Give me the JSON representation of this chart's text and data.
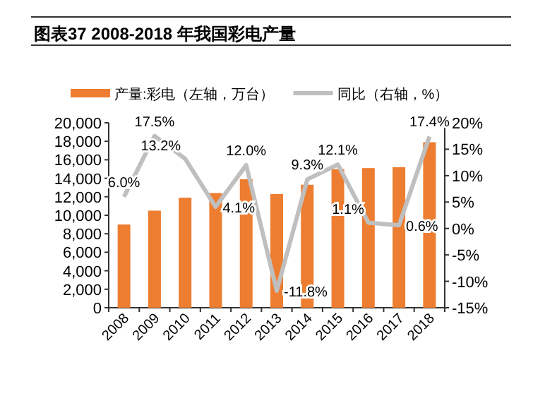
{
  "chart_data": {
    "type": "bar",
    "title": "图表37    2008-2018 年我国彩电产量",
    "categories": [
      "2008",
      "2009",
      "2010",
      "2011",
      "2012",
      "2013",
      "2014",
      "2015",
      "2016",
      "2017",
      "2018"
    ],
    "series": [
      {
        "name": "产量:彩电（左轴，万台）",
        "color": "#ed7d31",
        "values": [
          9000,
          10500,
          11900,
          12400,
          13900,
          12300,
          13300,
          15000,
          15100,
          15200,
          17900
        ]
      },
      {
        "name": "同比（右轴，%）",
        "type": "line",
        "axis": "y2",
        "color": "#bfbfbf",
        "values": [
          6.0,
          17.5,
          13.2,
          4.1,
          12.0,
          -11.8,
          9.3,
          12.1,
          1.1,
          0.6,
          17.4
        ],
        "value_labels": [
          "6.0%",
          "17.5%",
          "13.2%",
          "4.1%",
          "12.0%",
          "-11.8%",
          "9.3%",
          "12.1%",
          "1.1%",
          "0.6%",
          "17.4%"
        ]
      }
    ],
    "ylim": [
      0,
      20000
    ],
    "yticks": [
      {
        "value": 0,
        "label": "0"
      },
      {
        "value": 2000,
        "label": "2,000"
      },
      {
        "value": 4000,
        "label": "4,000"
      },
      {
        "value": 6000,
        "label": "6,000"
      },
      {
        "value": 8000,
        "label": "8,000"
      },
      {
        "value": 10000,
        "label": "10,000"
      },
      {
        "value": 12000,
        "label": "12,000"
      },
      {
        "value": 14000,
        "label": "14,000"
      },
      {
        "value": 16000,
        "label": "16,000"
      },
      {
        "value": 18000,
        "label": "18,000"
      },
      {
        "value": 20000,
        "label": "20,000"
      }
    ],
    "y2lim": [
      -15,
      20
    ],
    "y2ticks": [
      {
        "value": -15,
        "label": "-15%"
      },
      {
        "value": -10,
        "label": "-10%"
      },
      {
        "value": -5,
        "label": "-5%"
      },
      {
        "value": 0,
        "label": "0%"
      },
      {
        "value": 5,
        "label": "5%"
      },
      {
        "value": 10,
        "label": "10%"
      },
      {
        "value": 15,
        "label": "15%"
      },
      {
        "value": 20,
        "label": "20%"
      }
    ],
    "legend": "top",
    "grid": false
  }
}
